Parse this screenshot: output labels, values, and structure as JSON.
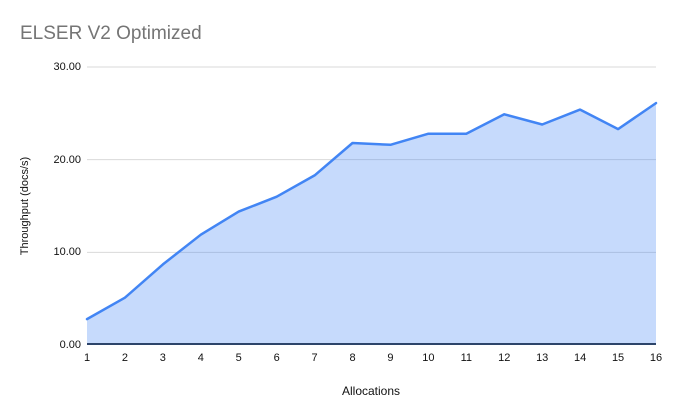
{
  "page": {
    "background": "#ffffff"
  },
  "chart_data": {
    "type": "area",
    "title": "ELSER V2 Optimized",
    "xlabel": "Allocations",
    "ylabel": "Throughput (docs/s)",
    "x": [
      1,
      2,
      3,
      4,
      5,
      6,
      7,
      8,
      9,
      10,
      11,
      12,
      13,
      14,
      15,
      16
    ],
    "values": [
      2.8,
      5.1,
      8.7,
      11.9,
      14.4,
      16.0,
      18.3,
      21.8,
      21.6,
      22.8,
      22.8,
      24.9,
      23.8,
      25.4,
      23.3,
      26.1
    ],
    "series_name": "Throughput (docs/s)",
    "ylim": [
      0,
      30
    ],
    "yticks": [
      0,
      10,
      20,
      30
    ],
    "ytick_labels": [
      "0.00",
      "10.00",
      "20.00",
      "30.00"
    ],
    "xtick_labels": [
      "1",
      "2",
      "3",
      "4",
      "5",
      "6",
      "7",
      "8",
      "9",
      "10",
      "11",
      "12",
      "13",
      "14",
      "15",
      "16"
    ],
    "grid": true,
    "legend": "none",
    "colors": {
      "line": "#4285f4",
      "fill": "rgba(66,133,244,0.30)",
      "gridline": "#d9d9d9",
      "baseline": "#24292e",
      "title_text": "#757575",
      "axis_text": "#111111"
    }
  }
}
